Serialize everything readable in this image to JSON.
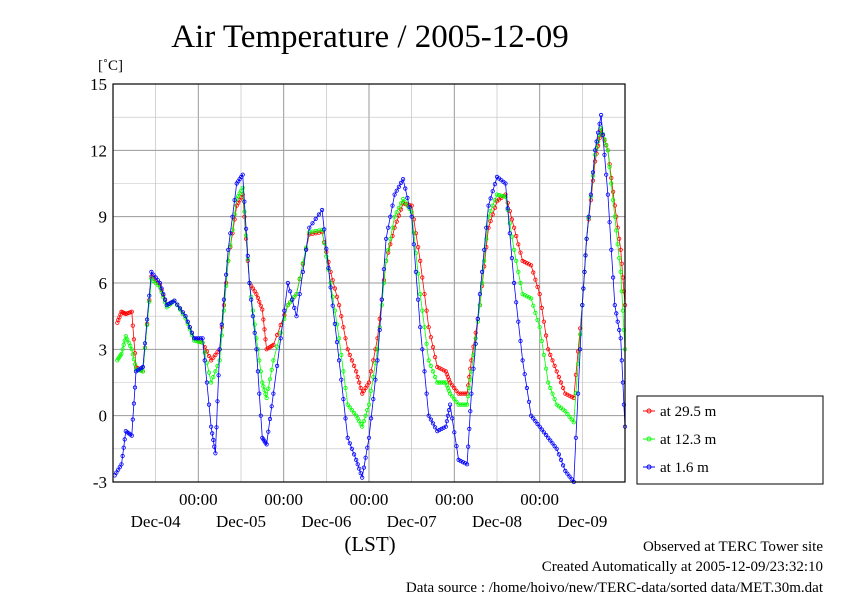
{
  "chart_data": {
    "type": "line",
    "title": "Air Temperature / 2005-12-09",
    "yunit": "[˚C]",
    "xlabel": "(LST)",
    "ylim": [
      -3,
      15
    ],
    "yticks": [
      "15",
      "12",
      "9",
      "6",
      "3",
      "0",
      "-3"
    ],
    "xlim": [
      0,
      6
    ],
    "time_ticks": [
      "00:00",
      "00:00",
      "00:00",
      "00:00",
      "00:00"
    ],
    "date_labels": [
      "Dec-04",
      "Dec-05",
      "Dec-06",
      "Dec-07",
      "Dec-08",
      "Dec-09"
    ],
    "grid": true,
    "legend_position": "right",
    "series": [
      {
        "name": "at 29.5 m",
        "color": "#ff0000",
        "points": [
          [
            0.05,
            4.2
          ],
          [
            0.1,
            4.7
          ],
          [
            0.15,
            4.6
          ],
          [
            0.22,
            4.7
          ],
          [
            0.27,
            2.2
          ],
          [
            0.35,
            2.0
          ],
          [
            0.45,
            6.3
          ],
          [
            0.55,
            5.9
          ],
          [
            0.63,
            5.0
          ],
          [
            0.72,
            5.2
          ],
          [
            0.85,
            4.5
          ],
          [
            0.95,
            3.5
          ],
          [
            1.05,
            3.3
          ],
          [
            1.15,
            2.5
          ],
          [
            1.25,
            3.0
          ],
          [
            1.35,
            7.0
          ],
          [
            1.45,
            9.5
          ],
          [
            1.52,
            10.0
          ],
          [
            1.6,
            6.0
          ],
          [
            1.68,
            5.5
          ],
          [
            1.75,
            4.8
          ],
          [
            1.8,
            3.0
          ],
          [
            1.88,
            3.2
          ],
          [
            2.05,
            5.0
          ],
          [
            2.15,
            5.5
          ],
          [
            2.3,
            8.2
          ],
          [
            2.45,
            8.3
          ],
          [
            2.55,
            6.5
          ],
          [
            2.65,
            5.0
          ],
          [
            2.75,
            3.0
          ],
          [
            2.85,
            2.0
          ],
          [
            2.92,
            1.0
          ],
          [
            3.0,
            1.5
          ],
          [
            3.1,
            3.5
          ],
          [
            3.2,
            7.0
          ],
          [
            3.3,
            8.5
          ],
          [
            3.4,
            9.6
          ],
          [
            3.5,
            9.5
          ],
          [
            3.6,
            7.0
          ],
          [
            3.7,
            4.0
          ],
          [
            3.8,
            2.2
          ],
          [
            3.9,
            2.0
          ],
          [
            3.95,
            1.5
          ],
          [
            4.05,
            1.0
          ],
          [
            4.15,
            1.0
          ],
          [
            4.2,
            2.5
          ],
          [
            4.3,
            5.0
          ],
          [
            4.4,
            8.5
          ],
          [
            4.5,
            9.7
          ],
          [
            4.6,
            10.0
          ],
          [
            4.7,
            8.5
          ],
          [
            4.8,
            7.0
          ],
          [
            4.9,
            6.8
          ],
          [
            5.0,
            5.5
          ],
          [
            5.1,
            3.0
          ],
          [
            5.2,
            2.0
          ],
          [
            5.3,
            1.0
          ],
          [
            5.4,
            0.8
          ],
          [
            5.5,
            5.0
          ],
          [
            5.55,
            8.0
          ],
          [
            5.65,
            11.5
          ],
          [
            5.72,
            12.9
          ],
          [
            5.8,
            12.0
          ],
          [
            5.88,
            9.5
          ],
          [
            5.95,
            7.5
          ],
          [
            6.0,
            5.0
          ]
        ]
      },
      {
        "name": "at 12.3 m",
        "color": "#00ff00",
        "points": [
          [
            0.05,
            2.5
          ],
          [
            0.1,
            2.8
          ],
          [
            0.15,
            3.6
          ],
          [
            0.22,
            3.0
          ],
          [
            0.27,
            2.1
          ],
          [
            0.35,
            2.0
          ],
          [
            0.45,
            6.2
          ],
          [
            0.55,
            5.8
          ],
          [
            0.63,
            4.9
          ],
          [
            0.72,
            5.2
          ],
          [
            0.85,
            4.4
          ],
          [
            0.95,
            3.4
          ],
          [
            1.05,
            3.3
          ],
          [
            1.15,
            1.5
          ],
          [
            1.25,
            2.5
          ],
          [
            1.35,
            7.0
          ],
          [
            1.45,
            9.8
          ],
          [
            1.52,
            10.3
          ],
          [
            1.6,
            6.0
          ],
          [
            1.68,
            3.5
          ],
          [
            1.75,
            1.5
          ],
          [
            1.8,
            0.8
          ],
          [
            1.88,
            2.5
          ],
          [
            2.05,
            5.0
          ],
          [
            2.15,
            5.5
          ],
          [
            2.3,
            8.3
          ],
          [
            2.45,
            8.4
          ],
          [
            2.55,
            6.0
          ],
          [
            2.65,
            3.5
          ],
          [
            2.75,
            0.5
          ],
          [
            2.85,
            0.0
          ],
          [
            2.92,
            -0.5
          ],
          [
            3.0,
            0.5
          ],
          [
            3.1,
            3.0
          ],
          [
            3.2,
            7.0
          ],
          [
            3.3,
            9.0
          ],
          [
            3.4,
            9.8
          ],
          [
            3.5,
            9.2
          ],
          [
            3.6,
            5.5
          ],
          [
            3.7,
            2.5
          ],
          [
            3.8,
            1.5
          ],
          [
            3.9,
            1.5
          ],
          [
            3.95,
            1.0
          ],
          [
            4.05,
            0.5
          ],
          [
            4.15,
            0.5
          ],
          [
            4.2,
            2.0
          ],
          [
            4.3,
            5.0
          ],
          [
            4.4,
            9.0
          ],
          [
            4.5,
            10.0
          ],
          [
            4.6,
            9.9
          ],
          [
            4.7,
            7.5
          ],
          [
            4.8,
            5.5
          ],
          [
            4.9,
            5.3
          ],
          [
            5.0,
            4.0
          ],
          [
            5.1,
            1.5
          ],
          [
            5.2,
            0.5
          ],
          [
            5.3,
            0.2
          ],
          [
            5.4,
            -0.3
          ],
          [
            5.5,
            5.0
          ],
          [
            5.55,
            8.0
          ],
          [
            5.65,
            11.8
          ],
          [
            5.72,
            13.0
          ],
          [
            5.8,
            12.0
          ],
          [
            5.88,
            9.0
          ],
          [
            5.95,
            6.5
          ],
          [
            6.0,
            3.0
          ]
        ]
      },
      {
        "name": "at 1.6 m",
        "color": "#0000ff",
        "points": [
          [
            0.02,
            -2.7
          ],
          [
            0.1,
            -2.2
          ],
          [
            0.15,
            -0.7
          ],
          [
            0.22,
            -0.9
          ],
          [
            0.27,
            2.0
          ],
          [
            0.35,
            2.2
          ],
          [
            0.45,
            6.5
          ],
          [
            0.55,
            6.0
          ],
          [
            0.63,
            5.0
          ],
          [
            0.72,
            5.2
          ],
          [
            0.85,
            4.5
          ],
          [
            0.95,
            3.5
          ],
          [
            1.05,
            3.5
          ],
          [
            1.15,
            -0.5
          ],
          [
            1.2,
            -1.7
          ],
          [
            1.25,
            3.0
          ],
          [
            1.35,
            7.5
          ],
          [
            1.45,
            10.5
          ],
          [
            1.52,
            10.9
          ],
          [
            1.6,
            6.0
          ],
          [
            1.68,
            3.0
          ],
          [
            1.75,
            -1.0
          ],
          [
            1.8,
            -1.3
          ],
          [
            1.88,
            1.0
          ],
          [
            2.05,
            6.0
          ],
          [
            2.15,
            4.5
          ],
          [
            2.3,
            8.5
          ],
          [
            2.45,
            9.3
          ],
          [
            2.55,
            5.8
          ],
          [
            2.65,
            2.5
          ],
          [
            2.75,
            -1.0
          ],
          [
            2.85,
            -2.0
          ],
          [
            2.92,
            -2.8
          ],
          [
            3.0,
            -1.0
          ],
          [
            3.1,
            2.5
          ],
          [
            3.2,
            8.0
          ],
          [
            3.3,
            10.0
          ],
          [
            3.4,
            10.7
          ],
          [
            3.5,
            9.0
          ],
          [
            3.6,
            4.0
          ],
          [
            3.7,
            0.0
          ],
          [
            3.8,
            -0.7
          ],
          [
            3.9,
            -0.5
          ],
          [
            3.95,
            0.5
          ],
          [
            4.05,
            -2.0
          ],
          [
            4.15,
            -2.2
          ],
          [
            4.2,
            1.0
          ],
          [
            4.3,
            5.5
          ],
          [
            4.4,
            9.5
          ],
          [
            4.5,
            10.8
          ],
          [
            4.6,
            10.5
          ],
          [
            4.7,
            6.0
          ],
          [
            4.8,
            2.5
          ],
          [
            4.9,
            0.0
          ],
          [
            5.0,
            -0.5
          ],
          [
            5.1,
            -1.0
          ],
          [
            5.2,
            -1.5
          ],
          [
            5.3,
            -2.5
          ],
          [
            5.4,
            -3.0
          ],
          [
            5.5,
            5.0
          ],
          [
            5.55,
            8.0
          ],
          [
            5.65,
            12.0
          ],
          [
            5.72,
            13.6
          ],
          [
            5.8,
            10.0
          ],
          [
            5.88,
            5.0
          ],
          [
            5.95,
            3.5
          ],
          [
            6.0,
            -0.5
          ]
        ]
      }
    ]
  },
  "footer": {
    "site": "Observed at TERC Tower site",
    "created": "Created Automatically at 2005-12-09/23:32:10",
    "source": "Data source : /home/hoivo/new/TERC-data/sorted data/MET.30m.dat"
  }
}
